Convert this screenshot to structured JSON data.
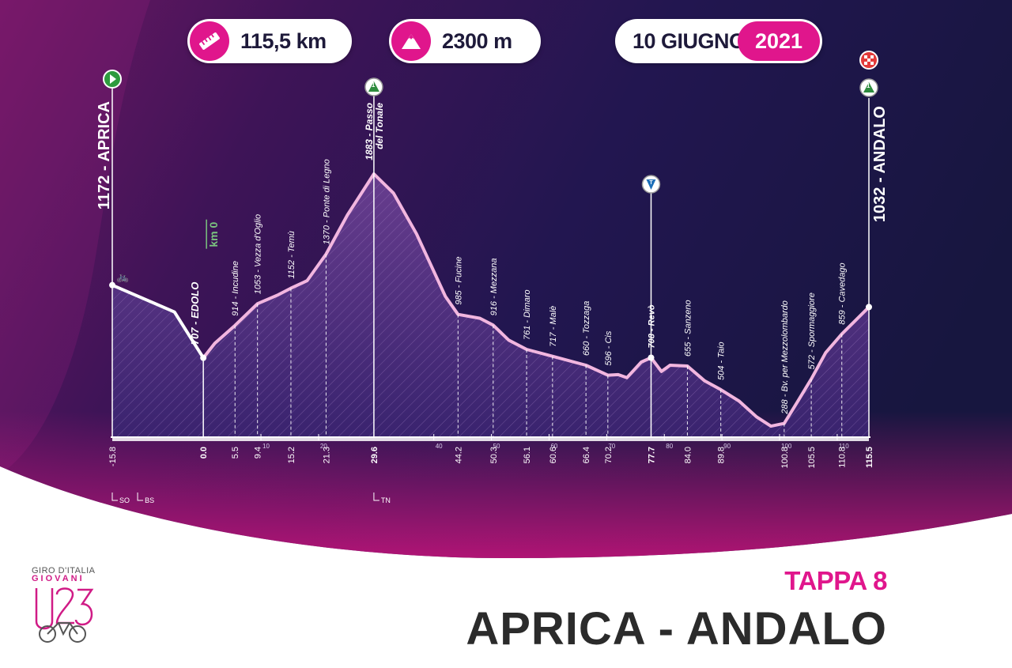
{
  "header": {
    "distance": "115,5 km",
    "elevation_gain": "2300 m",
    "date": "10 GIUGNO",
    "year": "2021"
  },
  "stage": {
    "number_label": "TAPPA 8",
    "route": "APRICA - ANDALO"
  },
  "logo": {
    "line1": "GIRO D'ITALIA",
    "line2": "GIOVANI",
    "line3": "U23"
  },
  "colors": {
    "brand_pink": "#e0168c",
    "background_dark": "#1e1648",
    "profile_outline": "#f2b6df",
    "pre_start_outline": "#ffffff"
  },
  "chart_data": {
    "type": "area",
    "xlim": [
      -15.8,
      115.5
    ],
    "ylim": [
      0,
      1883
    ],
    "profile": [
      {
        "km": -15.8,
        "alt": 1172
      },
      {
        "km": -10,
        "alt": 1080
      },
      {
        "km": -5,
        "alt": 1000
      },
      {
        "km": 0.0,
        "alt": 707
      },
      {
        "km": 2,
        "alt": 800
      },
      {
        "km": 5.5,
        "alt": 914
      },
      {
        "km": 9.4,
        "alt": 1053
      },
      {
        "km": 13,
        "alt": 1110
      },
      {
        "km": 15.2,
        "alt": 1152
      },
      {
        "km": 18,
        "alt": 1200
      },
      {
        "km": 21.3,
        "alt": 1370
      },
      {
        "km": 25,
        "alt": 1620
      },
      {
        "km": 29.6,
        "alt": 1883
      },
      {
        "km": 33,
        "alt": 1760
      },
      {
        "km": 37,
        "alt": 1500
      },
      {
        "km": 42,
        "alt": 1100
      },
      {
        "km": 44.2,
        "alt": 985
      },
      {
        "km": 48,
        "alt": 960
      },
      {
        "km": 50.3,
        "alt": 916
      },
      {
        "km": 53,
        "alt": 820
      },
      {
        "km": 56.1,
        "alt": 761
      },
      {
        "km": 60.6,
        "alt": 717
      },
      {
        "km": 66.4,
        "alt": 660
      },
      {
        "km": 70.2,
        "alt": 596
      },
      {
        "km": 72,
        "alt": 600
      },
      {
        "km": 73.5,
        "alt": 580
      },
      {
        "km": 76,
        "alt": 680
      },
      {
        "km": 77.7,
        "alt": 708
      },
      {
        "km": 79.5,
        "alt": 620
      },
      {
        "km": 81,
        "alt": 660
      },
      {
        "km": 84.0,
        "alt": 655
      },
      {
        "km": 87,
        "alt": 560
      },
      {
        "km": 89.8,
        "alt": 504
      },
      {
        "km": 93,
        "alt": 430
      },
      {
        "km": 96,
        "alt": 330
      },
      {
        "km": 98.5,
        "alt": 270
      },
      {
        "km": 100.8,
        "alt": 288
      },
      {
        "km": 103,
        "alt": 420
      },
      {
        "km": 105.5,
        "alt": 572
      },
      {
        "km": 108,
        "alt": 740
      },
      {
        "km": 110.8,
        "alt": 859
      },
      {
        "km": 113,
        "alt": 940
      },
      {
        "km": 115.5,
        "alt": 1032
      }
    ],
    "x_ticks": [
      "-15.8",
      "0.0",
      "5.5",
      "9.4",
      "15.2",
      "21.3",
      "29.6",
      "44.2",
      "50.3",
      "56.1",
      "60.6",
      "66.4",
      "70.2",
      "77.7",
      "84.0",
      "89.8",
      "100.8",
      "105.5",
      "110.8",
      "115.5"
    ],
    "bold_ticks": [
      "0.0",
      "29.6",
      "77.7",
      "115.5"
    ],
    "minor_ticks": [
      "10",
      "20",
      "40",
      "50",
      "60",
      "70",
      "80",
      "90",
      "100",
      "110"
    ],
    "province_labels": [
      {
        "km": -15.8,
        "text": "SO"
      },
      {
        "km": -11.4,
        "text": "BS"
      },
      {
        "km": 29.6,
        "text": "TN"
      }
    ],
    "waypoints": [
      {
        "km": 5.5,
        "label": "914 - Incudine",
        "bold": false
      },
      {
        "km": 9.4,
        "label": "1053 - Vezza d'Oglio",
        "bold": false
      },
      {
        "km": 15.2,
        "label": "1152 - Temù",
        "bold": false
      },
      {
        "km": 21.3,
        "label": "1370 - Ponte di Legno",
        "bold": false
      },
      {
        "km": 44.2,
        "label": "985 - Fucine",
        "bold": false
      },
      {
        "km": 50.3,
        "label": "916 - Mezzana",
        "bold": false
      },
      {
        "km": 56.1,
        "label": "761 - Dimaro",
        "bold": false
      },
      {
        "km": 60.6,
        "label": "717 - Malè",
        "bold": false
      },
      {
        "km": 66.4,
        "label": "660 - Tozzaga",
        "bold": false
      },
      {
        "km": 70.2,
        "label": "596 - Cis",
        "bold": false
      },
      {
        "km": 77.7,
        "label": "708 - Revò",
        "bold": true
      },
      {
        "km": 84.0,
        "label": "655 - Sanzeno",
        "bold": false
      },
      {
        "km": 89.8,
        "label": "504 - Taio",
        "bold": false
      },
      {
        "km": 100.8,
        "label": "288 - Bv. per Mezzolombardo",
        "bold": false
      },
      {
        "km": 105.5,
        "label": "572 - Spormaggiore",
        "bold": false
      },
      {
        "km": 110.8,
        "label": "859 - Cavedago",
        "bold": false
      }
    ],
    "start": {
      "km": -15.8,
      "label": "1172 - APRICA"
    },
    "finish": {
      "km": 115.5,
      "label": "1032 - ANDALO"
    },
    "km0": {
      "km": 0.0,
      "label": "707 - EDOLO",
      "marker": "km 0"
    },
    "summit": {
      "km": 29.6,
      "label_line1": "1883 - Passo",
      "label_line2": "del Tonale",
      "badge": "1"
    },
    "finish_badge": "1",
    "sprint": {
      "km": 77.7,
      "badge": "T"
    }
  }
}
